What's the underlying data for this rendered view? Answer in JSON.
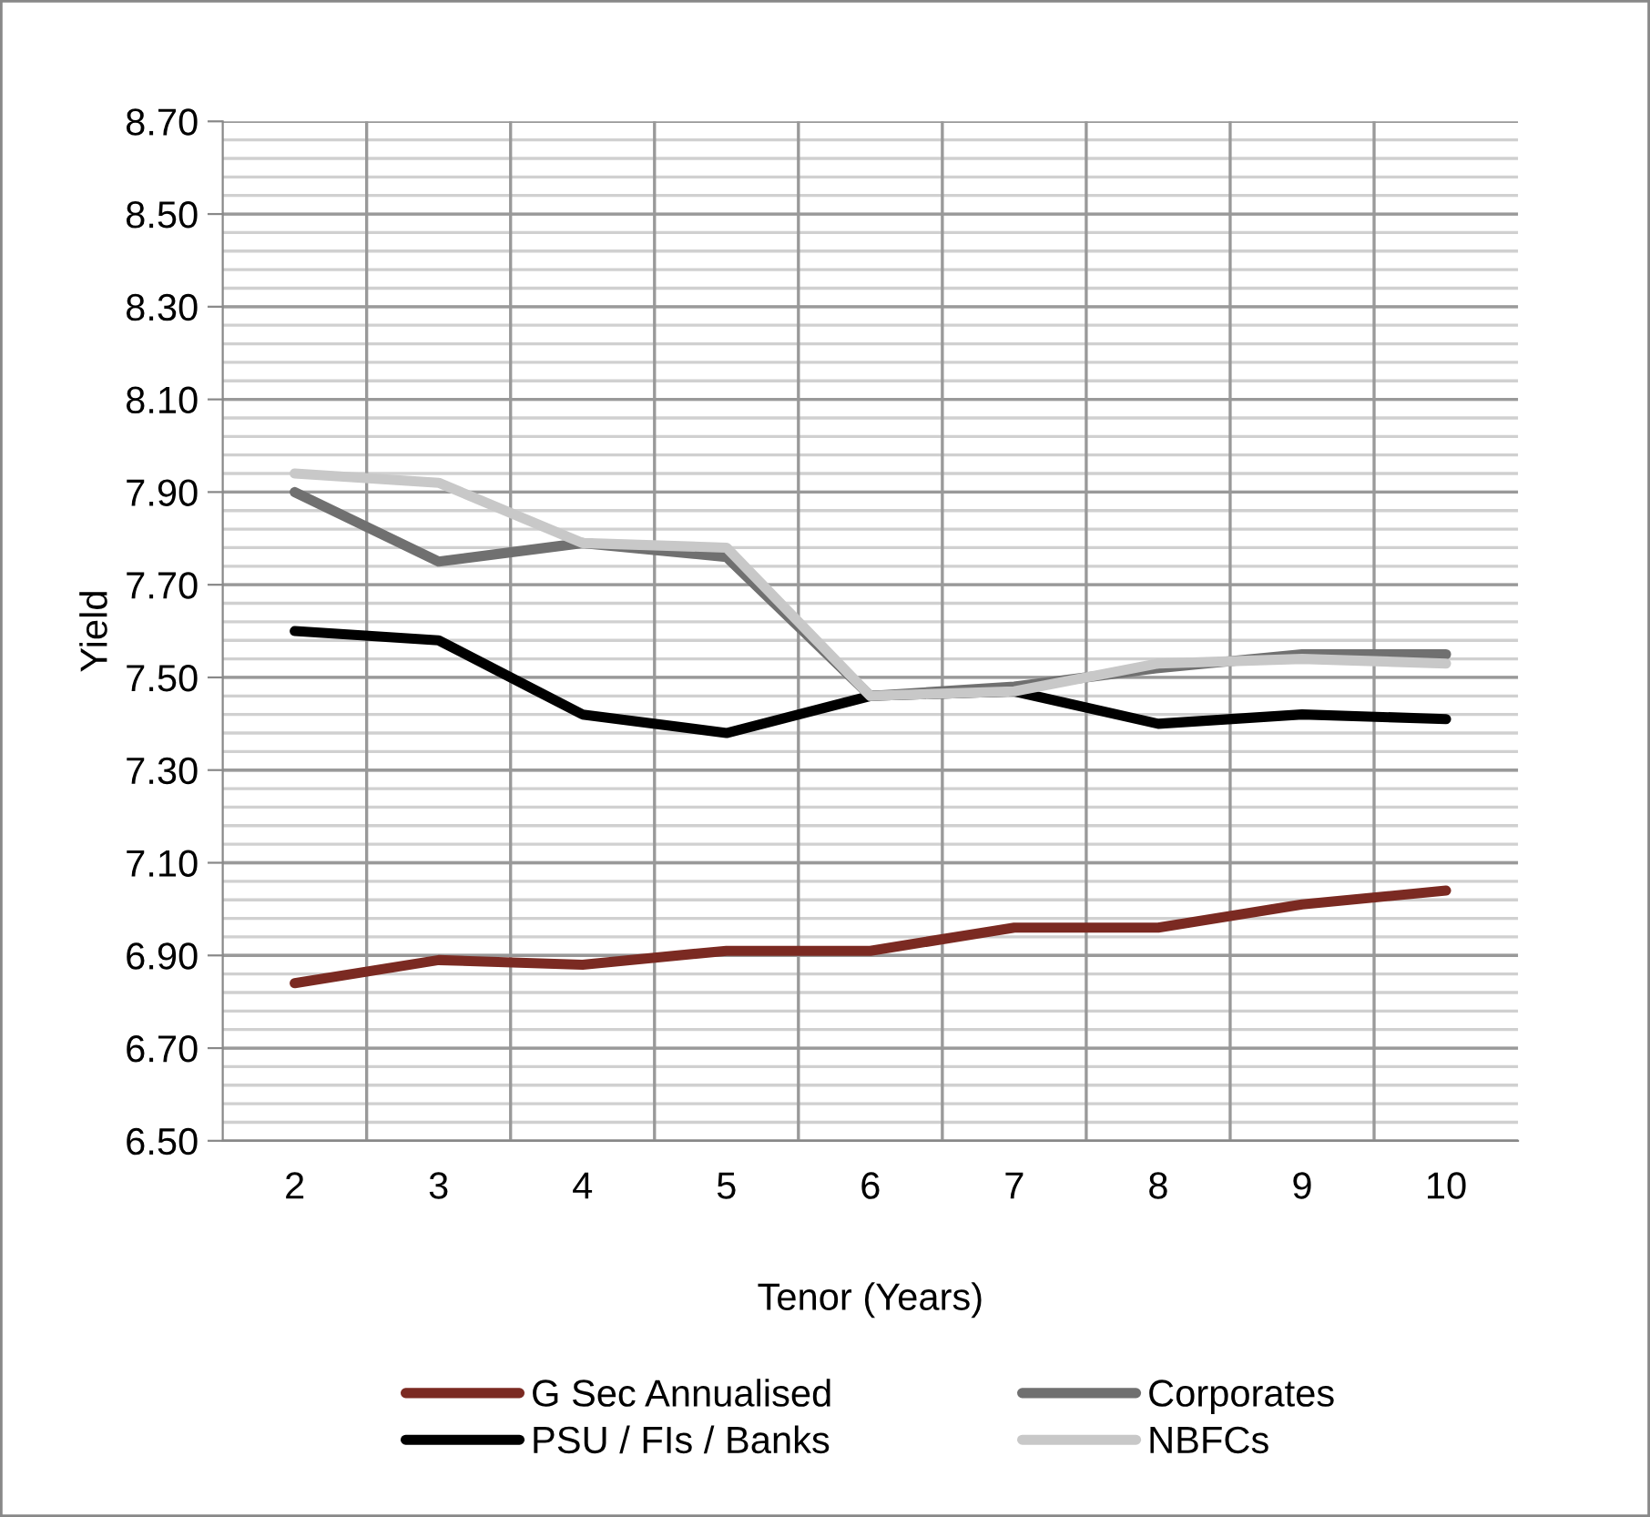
{
  "chart_data": {
    "type": "line",
    "xlabel": "Tenor (Years)",
    "ylabel": "Yield",
    "categories": [
      "2",
      "3",
      "4",
      "5",
      "6",
      "7",
      "8",
      "9",
      "10"
    ],
    "series": [
      {
        "name": "G Sec Annualised",
        "color": "#7b2a22",
        "values": [
          6.84,
          6.89,
          6.88,
          6.91,
          6.91,
          6.96,
          6.96,
          7.01,
          7.04
        ]
      },
      {
        "name": "PSU / FIs / Banks",
        "color": "#000000",
        "values": [
          7.6,
          7.58,
          7.42,
          7.38,
          7.46,
          7.47,
          7.4,
          7.42,
          7.41
        ]
      },
      {
        "name": "Corporates",
        "color": "#707070",
        "values": [
          7.9,
          7.75,
          7.79,
          7.76,
          7.46,
          7.48,
          7.52,
          7.55,
          7.55
        ]
      },
      {
        "name": "NBFCs",
        "color": "#c8c8c8",
        "values": [
          7.94,
          7.92,
          7.79,
          7.78,
          7.46,
          7.47,
          7.53,
          7.54,
          7.53
        ]
      }
    ],
    "ylim": [
      6.5,
      8.7
    ],
    "yticks": [
      {
        "value": 6.5,
        "label": "6.50"
      },
      {
        "value": 6.7,
        "label": "6.70"
      },
      {
        "value": 6.9,
        "label": "6.90"
      },
      {
        "value": 7.1,
        "label": "7.10"
      },
      {
        "value": 7.3,
        "label": "7.30"
      },
      {
        "value": 7.5,
        "label": "7.50"
      },
      {
        "value": 7.7,
        "label": "7.70"
      },
      {
        "value": 7.9,
        "label": "7.90"
      },
      {
        "value": 8.1,
        "label": "8.10"
      },
      {
        "value": 8.3,
        "label": "8.30"
      },
      {
        "value": 8.5,
        "label": "8.50"
      },
      {
        "value": 8.7,
        "label": "8.70"
      }
    ],
    "grid": true,
    "legend": "bottom",
    "marker": "none",
    "line_style": "solid"
  }
}
